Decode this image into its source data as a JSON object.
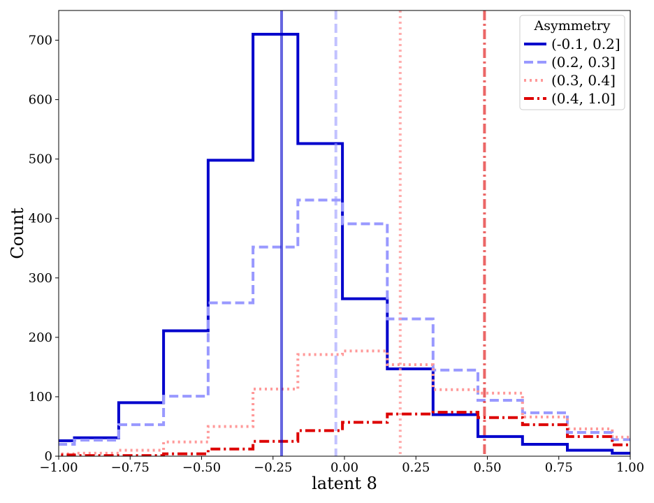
{
  "chart_data": {
    "type": "histogram",
    "xlabel": "latent 8",
    "ylabel": "Count",
    "xlim": [
      -1.0,
      1.0
    ],
    "ylim": [
      0,
      750
    ],
    "x_ticks": [
      -1.0,
      -0.75,
      -0.5,
      -0.25,
      0.0,
      0.25,
      0.5,
      0.75,
      1.0
    ],
    "x_tick_labels": [
      "−1.00",
      "−0.75",
      "−0.50",
      "−0.25",
      "0.00",
      "0.25",
      "0.50",
      "0.75",
      "1.00"
    ],
    "y_ticks": [
      0,
      100,
      200,
      300,
      400,
      500,
      600,
      700
    ],
    "y_tick_labels": [
      "0",
      "100",
      "200",
      "300",
      "400",
      "500",
      "600",
      "700"
    ],
    "grid": false,
    "legend": {
      "title": "Asymmetry",
      "placement": "top-right"
    },
    "series": [
      {
        "name": "(-0.1, 0.2]",
        "color": "#0000cc",
        "linestyle": "solid",
        "bin_edges": [
          -1.1,
          -0.945,
          -0.79,
          -0.633,
          -0.477,
          -0.32,
          -0.163,
          -0.007,
          0.15,
          0.31,
          0.467,
          0.623,
          0.78,
          0.937,
          1.09
        ],
        "counts": [
          26,
          31,
          90,
          211,
          498,
          710,
          526,
          265,
          147,
          70,
          33,
          20,
          10,
          5
        ],
        "median": -0.22,
        "median_opacity": 0.6
      },
      {
        "name": "(0.2, 0.3]",
        "color": "#9999ff",
        "linestyle": "dashed",
        "bin_edges": [
          -1.1,
          -0.945,
          -0.79,
          -0.633,
          -0.477,
          -0.32,
          -0.163,
          -0.007,
          0.15,
          0.31,
          0.467,
          0.623,
          0.78,
          0.937,
          1.09
        ],
        "counts": [
          20,
          27,
          53,
          101,
          258,
          352,
          431,
          391,
          231,
          145,
          94,
          73,
          40,
          28
        ],
        "median": -0.03,
        "median_opacity": 0.6
      },
      {
        "name": "(0.3, 0.4]",
        "color": "#ff9999",
        "linestyle": "dotted",
        "bin_edges": [
          -1.1,
          -0.945,
          -0.79,
          -0.633,
          -0.477,
          -0.32,
          -0.163,
          -0.007,
          0.15,
          0.31,
          0.467,
          0.623,
          0.78,
          0.937,
          1.09
        ],
        "counts": [
          4,
          5,
          10,
          24,
          50,
          113,
          171,
          177,
          154,
          112,
          106,
          66,
          46,
          32
        ],
        "median": 0.195,
        "median_opacity": 0.8
      },
      {
        "name": "(0.4, 1.0]",
        "color": "#dd0000",
        "linestyle": "dashdot",
        "bin_edges": [
          -1.1,
          -0.945,
          -0.79,
          -0.633,
          -0.477,
          -0.32,
          -0.163,
          -0.007,
          0.15,
          0.31,
          0.467,
          0.623,
          0.78,
          0.937,
          1.09
        ],
        "counts": [
          2,
          1,
          1,
          4,
          12,
          25,
          43,
          57,
          71,
          74,
          65,
          53,
          33,
          19
        ],
        "median": 0.49,
        "median_opacity": 0.6
      }
    ]
  }
}
